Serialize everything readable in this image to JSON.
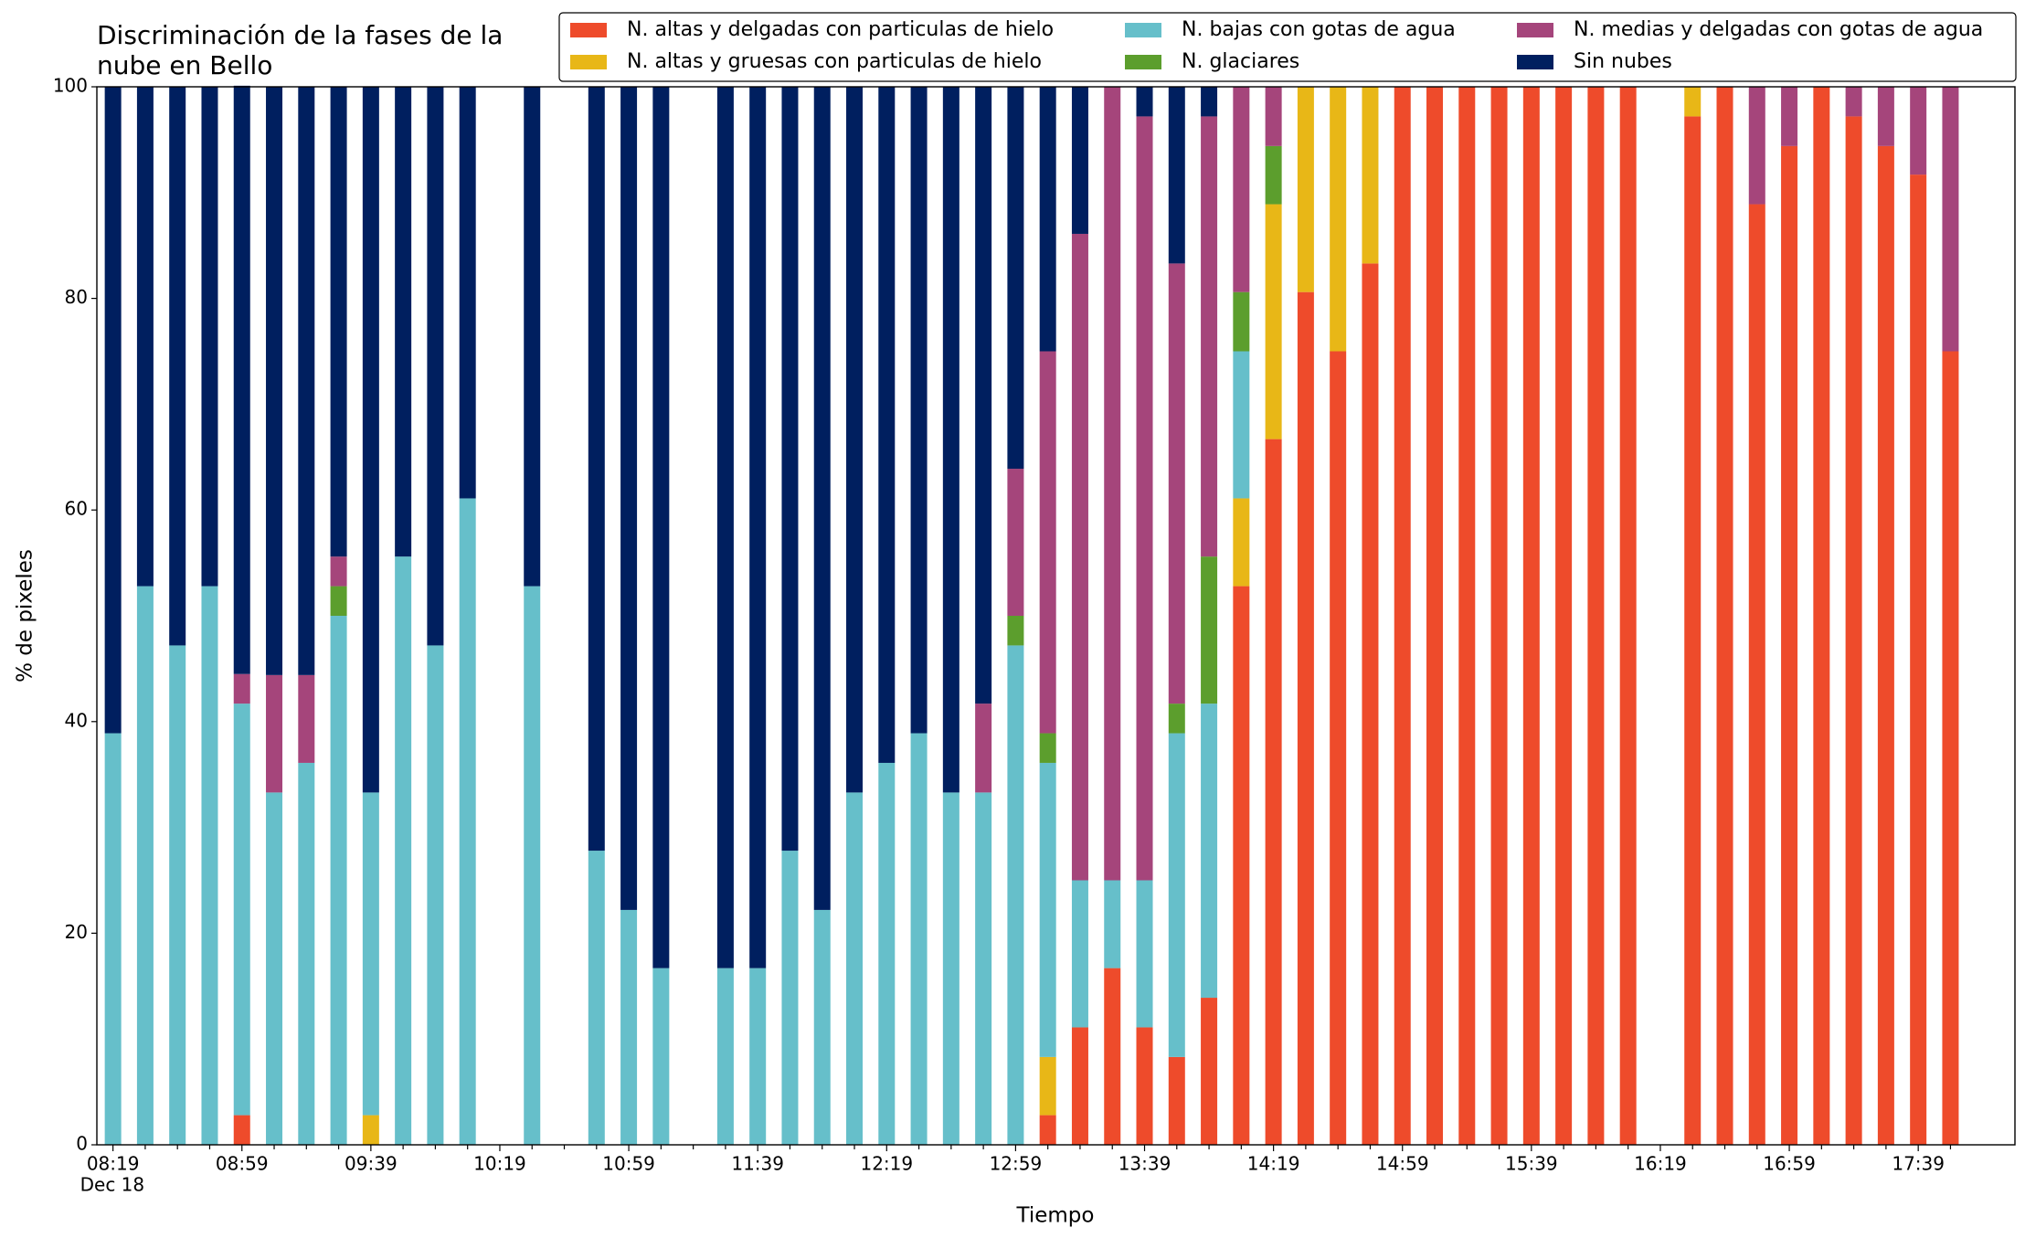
{
  "chart_data": {
    "type": "stacked_bar",
    "title": "Discriminación de la fases de la\nnube en Bello",
    "x_label": "Tiempo",
    "y_label": "% de pixeles",
    "x_date": "Dec 18",
    "categories": [
      "08:19",
      null,
      null,
      null,
      "08:59",
      null,
      null,
      null,
      "09:39",
      null,
      null,
      null,
      "10:19",
      null,
      null,
      null,
      "10:59",
      null,
      null,
      null,
      "11:39",
      null,
      null,
      null,
      "12:19",
      null,
      null,
      null,
      "12:59",
      null,
      null,
      null,
      "13:39",
      null,
      null,
      null,
      "14:19",
      null,
      null,
      null,
      "14:59",
      null,
      null,
      null,
      "15:39",
      null,
      null,
      null,
      "16:19",
      null,
      null,
      null,
      "16:59",
      null,
      null,
      null,
      "17:39",
      null
    ],
    "ylim": [
      0,
      100
    ],
    "yticks": [
      0,
      20,
      40,
      60,
      80,
      100
    ],
    "legend": "top-right",
    "series": [
      {
        "name": "N. altas y delgadas con particulas de hielo",
        "color": "#ee4b2b",
        "values": [
          0,
          0,
          0,
          0,
          2.8,
          0,
          0,
          0,
          0,
          0,
          0,
          0,
          0,
          0,
          0,
          0,
          0,
          0,
          0,
          0,
          0,
          0,
          0,
          0,
          0,
          0,
          0,
          0,
          0,
          2.8,
          11.1,
          16.7,
          11.1,
          8.3,
          13.9,
          52.8,
          66.7,
          80.6,
          75,
          83.3,
          100,
          100,
          100,
          100,
          100,
          100,
          100,
          100,
          0,
          97.2,
          100,
          88.9,
          94.4,
          100,
          97.2,
          94.4,
          91.7,
          75
        ]
      },
      {
        "name": "N. altas y gruesas con particulas de hielo",
        "color": "#e8b717",
        "values": [
          0,
          0,
          0,
          0,
          0,
          0,
          0,
          0,
          2.8,
          0,
          0,
          0,
          0,
          0,
          0,
          0,
          0,
          0,
          0,
          0,
          0,
          0,
          0,
          0,
          0,
          0,
          0,
          0,
          0,
          5.5,
          0,
          0,
          0,
          0,
          0,
          8.3,
          22.2,
          19.4,
          25,
          16.7,
          0,
          0,
          0,
          0,
          0,
          0,
          0,
          0,
          0,
          2.8,
          0,
          0,
          0,
          0,
          0,
          0,
          0,
          0
        ]
      },
      {
        "name": "N. bajas con gotas de agua",
        "color": "#66bfca",
        "values": [
          38.9,
          52.8,
          47.2,
          52.8,
          38.9,
          33.3,
          36.1,
          50,
          30.5,
          55.6,
          47.2,
          61.1,
          0,
          52.8,
          0,
          27.8,
          22.2,
          16.7,
          0,
          16.7,
          16.7,
          27.8,
          22.2,
          33.3,
          36.1,
          38.9,
          33.3,
          33.3,
          47.2,
          27.8,
          13.9,
          8.3,
          13.9,
          30.6,
          27.8,
          13.9,
          0,
          0,
          0,
          0,
          0,
          0,
          0,
          0,
          0,
          0,
          0,
          0,
          0,
          0,
          0,
          0,
          0,
          0,
          0,
          0,
          0,
          0
        ]
      },
      {
        "name": "N. glaciares",
        "color": "#5c9e2d",
        "values": [
          0,
          0,
          0,
          0,
          0,
          0,
          0,
          2.8,
          0,
          0,
          0,
          0,
          0,
          0,
          0,
          0,
          0,
          0,
          0,
          0,
          0,
          0,
          0,
          0,
          0,
          0,
          0,
          0,
          2.8,
          2.8,
          0,
          0,
          0,
          2.8,
          13.9,
          5.6,
          5.5,
          0,
          0,
          0,
          0,
          0,
          0,
          0,
          0,
          0,
          0,
          0,
          0,
          0,
          0,
          0,
          0,
          0,
          0,
          0,
          0,
          0
        ]
      },
      {
        "name": "N. medias y delgadas con gotas de agua",
        "color": "#a5457b",
        "values": [
          0,
          0,
          0,
          0,
          2.8,
          11.1,
          8.3,
          2.8,
          0,
          0,
          0,
          0,
          0,
          0,
          0,
          0,
          0,
          0,
          0,
          0,
          0,
          0,
          0,
          0,
          0,
          0,
          0,
          8.4,
          13.9,
          36.1,
          61.1,
          75,
          72.2,
          41.6,
          41.6,
          19.4,
          5.6,
          0,
          0,
          0,
          0,
          0,
          0,
          0,
          0,
          0,
          0,
          0,
          0,
          0,
          0,
          11.1,
          5.6,
          0,
          2.8,
          5.6,
          8.3,
          25
        ]
      },
      {
        "name": "Sin nubes",
        "color": "#001f5f",
        "values": [
          61.1,
          47.2,
          52.8,
          47.2,
          55.6,
          55.6,
          55.6,
          44.4,
          66.7,
          44.4,
          52.8,
          38.9,
          0,
          47.2,
          0,
          72.2,
          77.8,
          83.3,
          0,
          83.3,
          83.3,
          72.2,
          77.8,
          66.7,
          63.9,
          61.1,
          66.7,
          58.3,
          36.1,
          25,
          13.9,
          0,
          2.8,
          16.7,
          2.8,
          0,
          0,
          0,
          0,
          0,
          0,
          0,
          0,
          0,
          0,
          0,
          0,
          0,
          0,
          0,
          0,
          0,
          0,
          0,
          0,
          0,
          0,
          0
        ]
      }
    ]
  }
}
